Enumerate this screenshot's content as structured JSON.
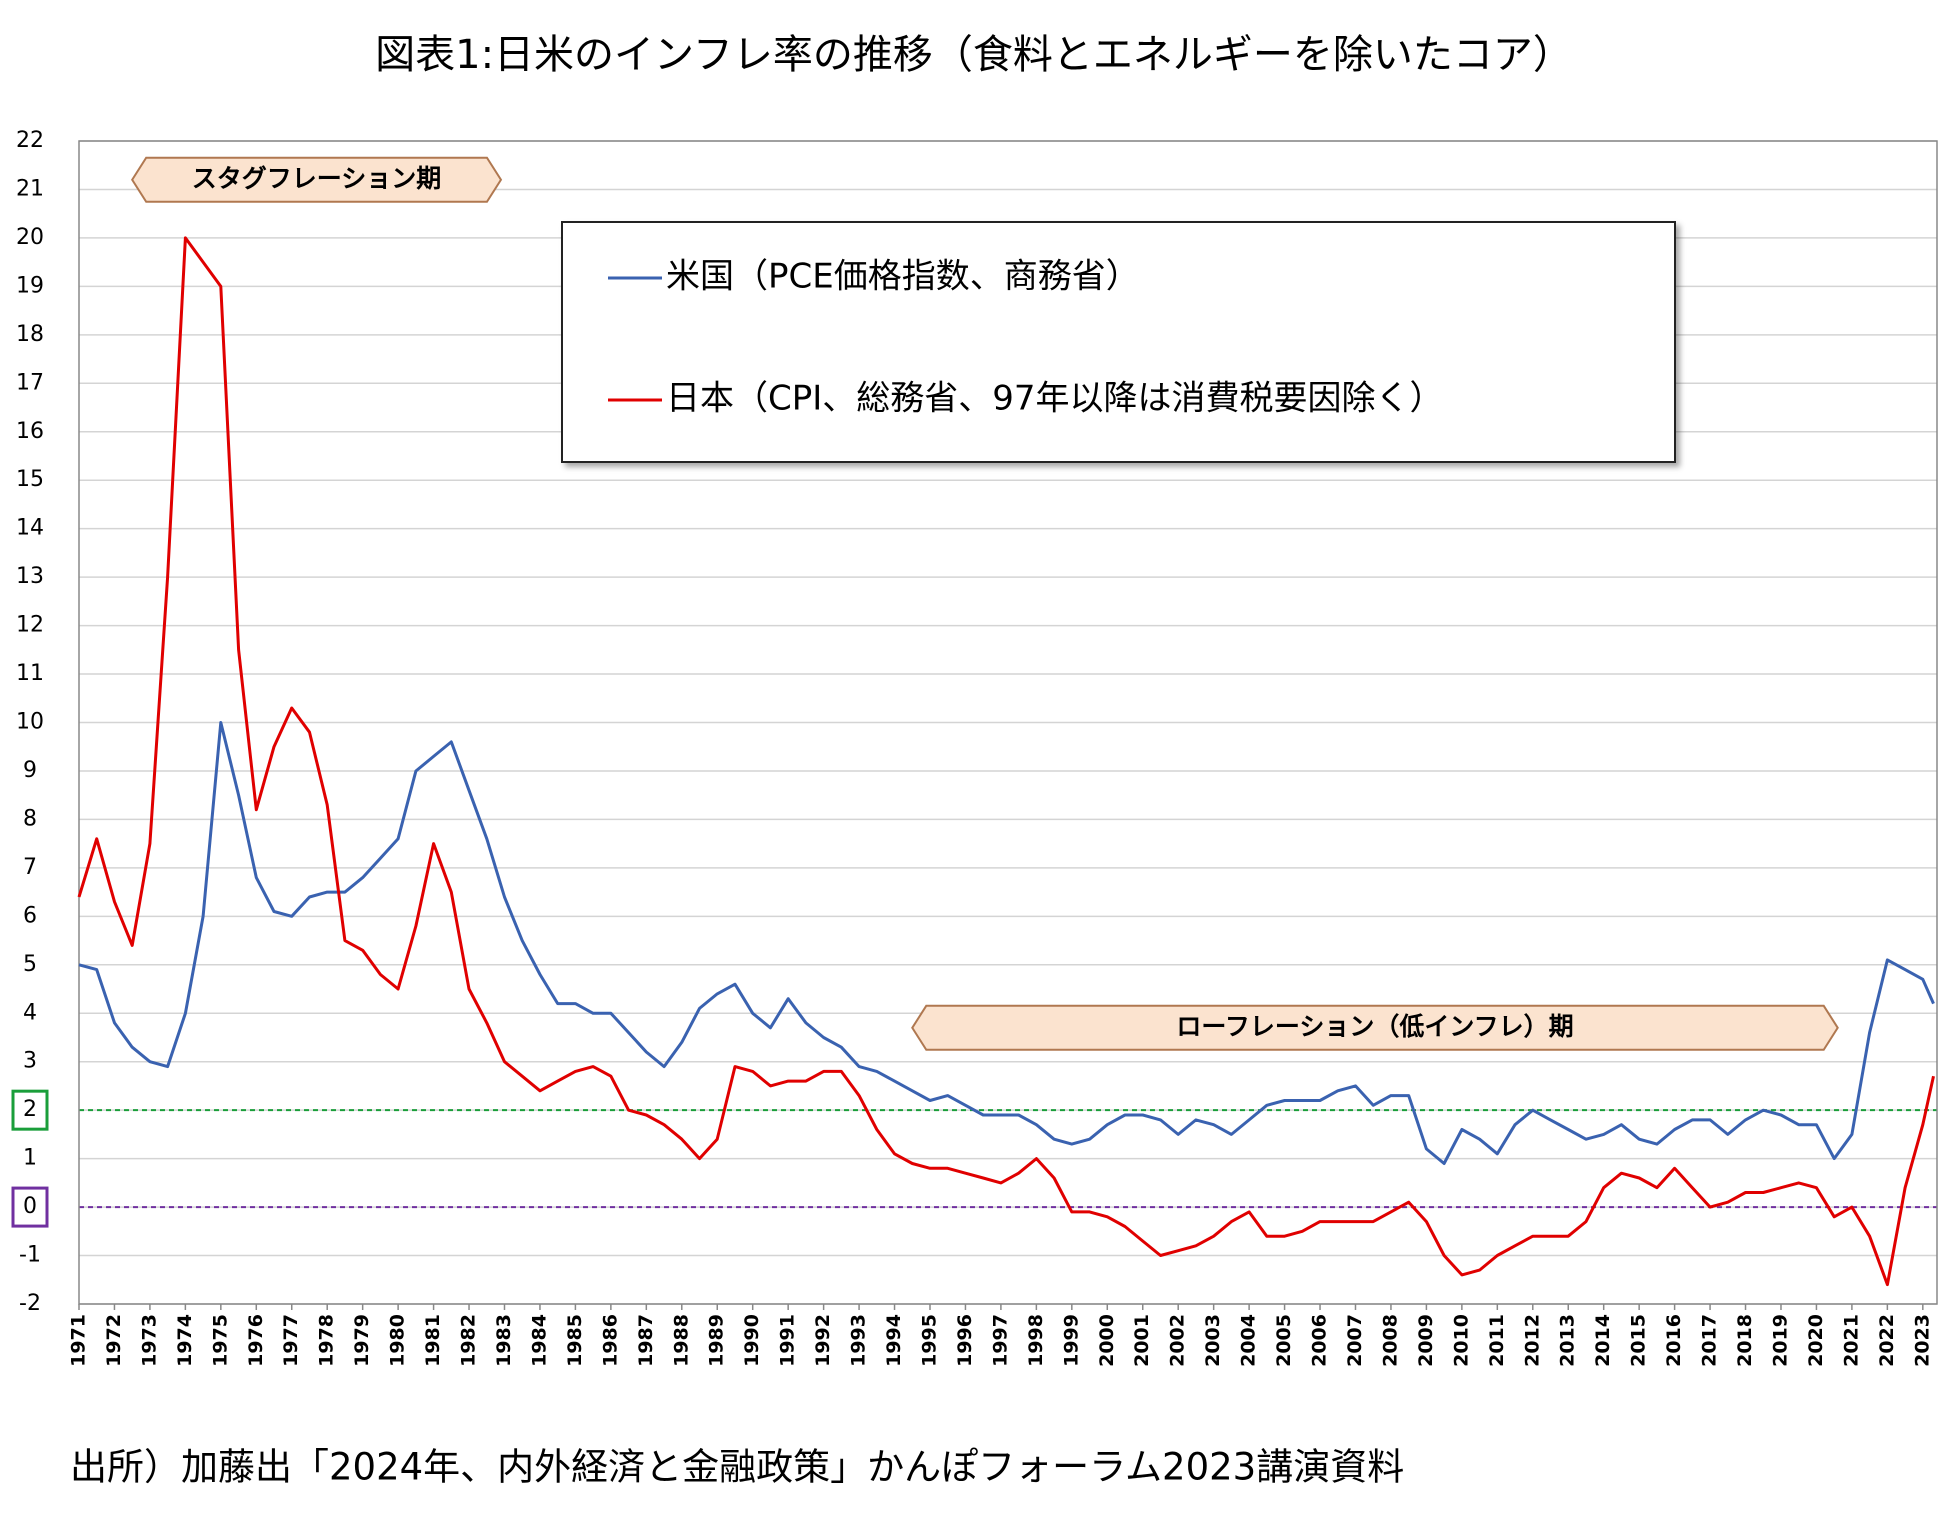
{
  "chart_data": {
    "type": "line",
    "title": "図表1:日米のインフレ率の推移（食料とエネルギーを除いたコア）",
    "source": "出所）加藤出「2024年、内外経済と金融政策」かんぽフォーラム2023講演資料",
    "x": [
      1971,
      1971.5,
      1972,
      1972.5,
      1973,
      1973.5,
      1974,
      1974.5,
      1975,
      1975.5,
      1976,
      1976.5,
      1977,
      1977.5,
      1978,
      1978.5,
      1979,
      1979.5,
      1980,
      1980.5,
      1981,
      1981.5,
      1982,
      1982.5,
      1983,
      1983.5,
      1984,
      1984.5,
      1985,
      1985.5,
      1986,
      1986.5,
      1987,
      1987.5,
      1988,
      1988.5,
      1989,
      1989.5,
      1990,
      1990.5,
      1991,
      1991.5,
      1992,
      1992.5,
      1993,
      1993.5,
      1994,
      1994.5,
      1995,
      1995.5,
      1996,
      1996.5,
      1997,
      1997.5,
      1998,
      1998.5,
      1999,
      1999.5,
      2000,
      2000.5,
      2001,
      2001.5,
      2002,
      2002.5,
      2003,
      2003.5,
      2004,
      2004.5,
      2005,
      2005.5,
      2006,
      2006.5,
      2007,
      2007.5,
      2008,
      2008.5,
      2009,
      2009.5,
      2010,
      2010.5,
      2011,
      2011.5,
      2012,
      2012.5,
      2013,
      2013.5,
      2014,
      2014.5,
      2015,
      2015.5,
      2016,
      2016.5,
      2017,
      2017.5,
      2018,
      2018.5,
      2019,
      2019.5,
      2020,
      2020.5,
      2021,
      2021.5,
      2022,
      2022.5,
      2023,
      2023.3
    ],
    "series": [
      {
        "name": "米国（PCE価格指数、商務省）",
        "color": "#3a62b0",
        "values": [
          5.0,
          4.9,
          3.8,
          3.3,
          3.0,
          2.9,
          4.0,
          6.0,
          10.0,
          8.5,
          6.8,
          6.1,
          6.0,
          6.4,
          6.5,
          6.5,
          6.8,
          7.2,
          7.6,
          9.0,
          9.3,
          9.6,
          8.6,
          7.6,
          6.4,
          5.5,
          4.8,
          4.2,
          4.2,
          4.0,
          4.0,
          3.6,
          3.2,
          2.9,
          3.4,
          4.1,
          4.4,
          4.6,
          4.0,
          3.7,
          4.3,
          3.8,
          3.5,
          3.3,
          2.9,
          2.8,
          2.6,
          2.4,
          2.2,
          2.3,
          2.1,
          1.9,
          1.9,
          1.9,
          1.7,
          1.4,
          1.3,
          1.4,
          1.7,
          1.9,
          1.9,
          1.8,
          1.5,
          1.8,
          1.7,
          1.5,
          1.8,
          2.1,
          2.2,
          2.2,
          2.2,
          2.4,
          2.5,
          2.1,
          2.3,
          2.3,
          1.2,
          0.9,
          1.6,
          1.4,
          1.1,
          1.7,
          2.0,
          1.8,
          1.6,
          1.4,
          1.5,
          1.7,
          1.4,
          1.3,
          1.6,
          1.8,
          1.8,
          1.5,
          1.8,
          2.0,
          1.9,
          1.7,
          1.7,
          1.0,
          1.5,
          3.6,
          5.1,
          4.9,
          4.7,
          4.2
        ]
      },
      {
        "name": "日本（CPI、総務省、97年以降は消費税要因除く）",
        "color": "#e00000",
        "values": [
          6.4,
          7.6,
          6.3,
          5.4,
          7.5,
          13.0,
          20.0,
          19.5,
          19.0,
          11.5,
          8.2,
          9.5,
          10.3,
          9.8,
          8.3,
          5.5,
          5.3,
          4.8,
          4.5,
          5.8,
          7.5,
          6.5,
          4.5,
          3.8,
          3.0,
          2.7,
          2.4,
          2.6,
          2.8,
          2.9,
          2.7,
          2.0,
          1.9,
          1.7,
          1.4,
          1.0,
          1.4,
          2.9,
          2.8,
          2.5,
          2.6,
          2.6,
          2.8,
          2.8,
          2.3,
          1.6,
          1.1,
          0.9,
          0.8,
          0.8,
          0.7,
          0.6,
          0.5,
          0.7,
          1.0,
          0.6,
          -0.1,
          -0.1,
          -0.2,
          -0.4,
          -0.7,
          -1.0,
          -0.9,
          -0.8,
          -0.6,
          -0.3,
          -0.1,
          -0.6,
          -0.6,
          -0.5,
          -0.3,
          -0.3,
          -0.3,
          -0.3,
          -0.1,
          0.1,
          -0.3,
          -1.0,
          -1.4,
          -1.3,
          -1.0,
          -0.8,
          -0.6,
          -0.6,
          -0.6,
          -0.3,
          0.4,
          0.7,
          0.6,
          0.4,
          0.8,
          0.4,
          0.0,
          0.1,
          0.3,
          0.3,
          0.4,
          0.5,
          0.4,
          -0.2,
          0.0,
          -0.6,
          -1.6,
          0.4,
          1.7,
          2.7
        ]
      }
    ],
    "xlim": [
      1971,
      2023.4
    ],
    "xticks": [
      1971,
      1972,
      1973,
      1974,
      1975,
      1976,
      1977,
      1978,
      1979,
      1980,
      1981,
      1982,
      1983,
      1984,
      1985,
      1986,
      1987,
      1988,
      1989,
      1990,
      1991,
      1992,
      1993,
      1994,
      1995,
      1996,
      1997,
      1998,
      1999,
      2000,
      2001,
      2002,
      2003,
      2004,
      2005,
      2006,
      2007,
      2008,
      2009,
      2010,
      2011,
      2012,
      2013,
      2014,
      2015,
      2016,
      2017,
      2018,
      2019,
      2020,
      2021,
      2022,
      2023
    ],
    "ylim": [
      -2,
      22
    ],
    "yticks": [
      -2,
      -1,
      0,
      1,
      2,
      3,
      4,
      5,
      6,
      7,
      8,
      9,
      10,
      11,
      12,
      13,
      14,
      15,
      16,
      17,
      18,
      19,
      20,
      21,
      22
    ],
    "grid": true,
    "negative_tick_color": "#e00000",
    "reference_lines": [
      {
        "value": 2,
        "color": "#1a9e3a"
      },
      {
        "value": 0,
        "color": "#7030a0"
      }
    ],
    "annotations": [
      {
        "text": "スタグフレーション期",
        "x_range": [
          1972.5,
          1982.9
        ],
        "y": 21.2
      },
      {
        "text": "ローフレーション（低インフレ）期",
        "x_range": [
          1994.5,
          2020.6
        ],
        "y": 3.7
      }
    ],
    "legend": "top"
  }
}
